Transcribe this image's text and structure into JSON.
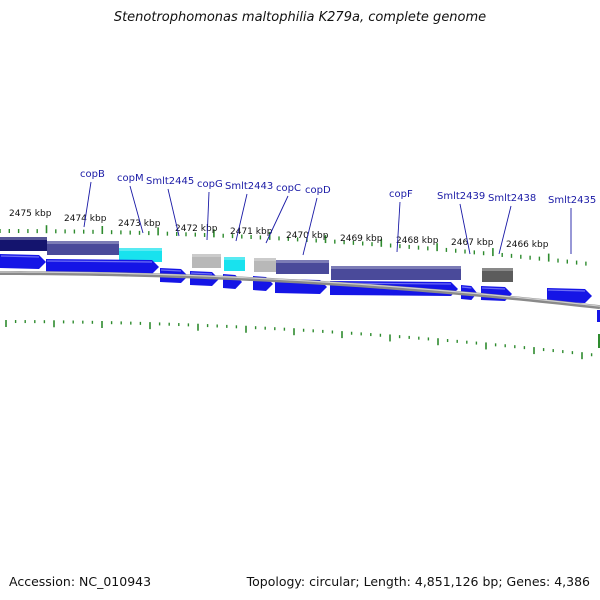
{
  "title": "Stenotrophomonas maltophilia K279a, complete genome",
  "footer": {
    "accession": "Accession: NC_010943",
    "summary": "Topology: circular; Length: 4,851,126 bp; Genes: 4,386"
  },
  "colors": {
    "background": "#ffffff",
    "backbone": "#8a8a8a",
    "forward_gene": "#1515e6",
    "tick": "#2e8b2e",
    "label_text": "#1a1aa6",
    "cog_dark_navy": "#14146e",
    "cog_slate": "#4a4a9a",
    "cog_cyan": "#18e2ee",
    "cog_light_gray": "#b8b8b8",
    "cog_dark_gray": "#5c5c5c"
  },
  "scale": {
    "unit": "kbp",
    "labels": [
      "2475 kbp",
      "2474 kbp",
      "2473 kbp",
      "2472 kbp",
      "2471 kbp",
      "2470 kbp",
      "2469 kbp",
      "2468 kbp",
      "2467 kbp",
      "2466 kbp"
    ]
  },
  "cog_track": [
    {
      "name": "cog-block-1",
      "color": "dark_navy"
    },
    {
      "name": "cog-block-2",
      "color": "slate"
    },
    {
      "name": "cog-block-3",
      "color": "cyan"
    },
    {
      "name": "cog-block-4",
      "color": "light_gray"
    },
    {
      "name": "cog-block-5",
      "color": "cyan"
    },
    {
      "name": "cog-block-6",
      "color": "light_gray"
    },
    {
      "name": "cog-block-7",
      "color": "slate"
    },
    {
      "name": "cog-block-8",
      "color": "slate"
    },
    {
      "name": "cog-block-9",
      "color": "dark_gray"
    }
  ],
  "gene_track": [
    {
      "name": "gene-1"
    },
    {
      "name": "gene-2"
    },
    {
      "name": "gene-3"
    },
    {
      "name": "gene-4"
    },
    {
      "name": "gene-5"
    },
    {
      "name": "gene-6"
    },
    {
      "name": "gene-7"
    },
    {
      "name": "gene-8"
    },
    {
      "name": "gene-9"
    },
    {
      "name": "gene-10"
    },
    {
      "name": "gene-11"
    },
    {
      "name": "gene-12"
    }
  ],
  "gene_labels": [
    "copB",
    "copM",
    "Smlt2445",
    "copG",
    "Smlt2443",
    "copC",
    "copD",
    "copF",
    "Smlt2439",
    "Smlt2438",
    "Smlt2435"
  ]
}
